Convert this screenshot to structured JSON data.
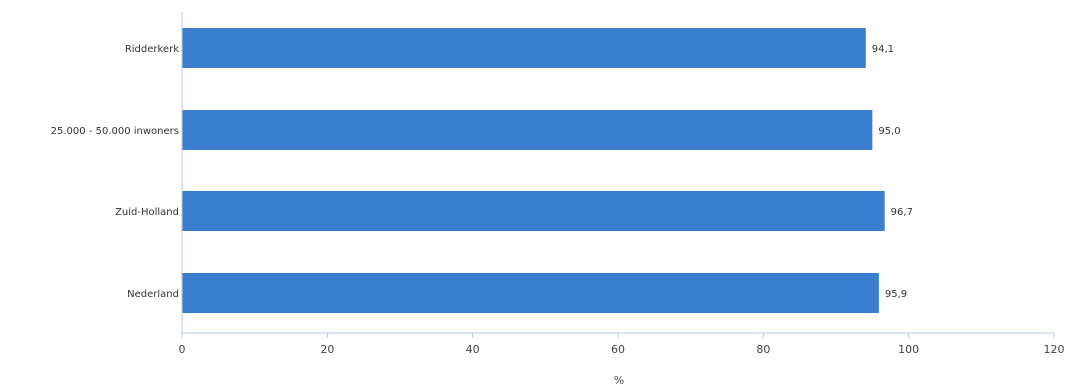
{
  "chart_data": {
    "type": "bar",
    "orientation": "horizontal",
    "categories": [
      "Ridderkerk",
      "25.000 - 50.000 inwoners",
      "Zuid-Holland",
      "Nederland"
    ],
    "values": [
      94.1,
      95.0,
      96.7,
      95.9
    ],
    "value_labels": [
      "94,1",
      "95,0",
      "96,7",
      "95,9"
    ],
    "xlabel": "%",
    "xlim": [
      0,
      120
    ],
    "xticks": [
      0,
      20,
      40,
      60,
      80,
      100,
      120
    ],
    "xtick_labels": [
      "0",
      "20",
      "40",
      "60",
      "80",
      "100",
      "120"
    ],
    "grid": false,
    "bar_color": "#3a7fcf",
    "axis_color": "#b8cce4"
  }
}
